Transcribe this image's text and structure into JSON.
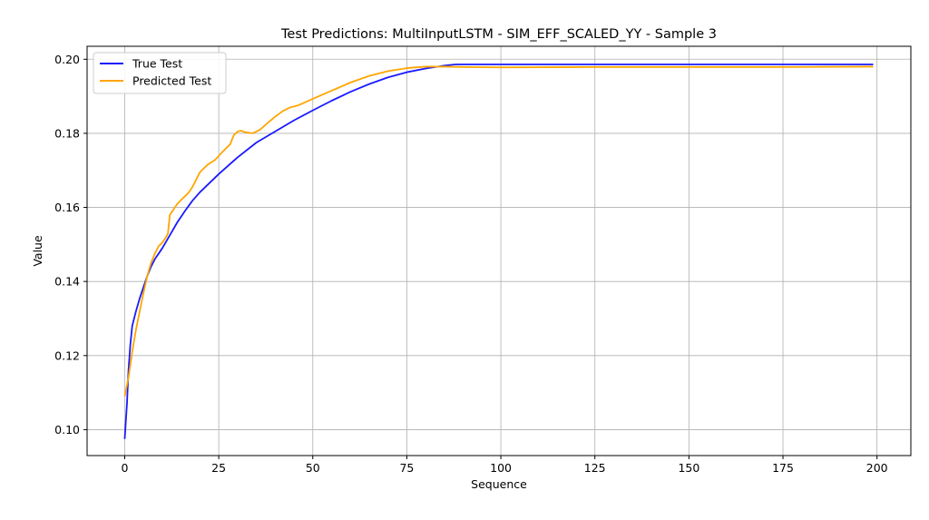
{
  "chart_data": {
    "type": "line",
    "title": "Test Predictions: MultiInputLSTM - SIM_EFF_SCALED_YY - Sample 3",
    "xlabel": "Sequence",
    "ylabel": "Value",
    "xlim": [
      -10,
      209
    ],
    "ylim": [
      0.093,
      0.2035
    ],
    "xticks": [
      0,
      25,
      50,
      75,
      100,
      125,
      150,
      175,
      200
    ],
    "yticks": [
      0.1,
      0.12,
      0.14,
      0.16,
      0.18,
      0.2
    ],
    "grid": true,
    "legend_position": "top-left",
    "series": [
      {
        "name": "True Test",
        "color": "#1a1aff",
        "points": [
          [
            0,
            0.0975
          ],
          [
            0.6,
            0.107
          ],
          [
            1,
            0.116
          ],
          [
            1.5,
            0.123
          ],
          [
            2,
            0.128
          ],
          [
            3,
            0.132
          ],
          [
            4,
            0.1355
          ],
          [
            5,
            0.1385
          ],
          [
            6,
            0.1415
          ],
          [
            7,
            0.144
          ],
          [
            8,
            0.146
          ],
          [
            9,
            0.1475
          ],
          [
            10,
            0.149
          ],
          [
            12,
            0.1525
          ],
          [
            14,
            0.156
          ],
          [
            16,
            0.159
          ],
          [
            18,
            0.1618
          ],
          [
            20,
            0.1641
          ],
          [
            25,
            0.169
          ],
          [
            30,
            0.1735
          ],
          [
            35,
            0.1775
          ],
          [
            40,
            0.1805
          ],
          [
            45,
            0.1835
          ],
          [
            50,
            0.1862
          ],
          [
            55,
            0.1888
          ],
          [
            60,
            0.1912
          ],
          [
            65,
            0.1933
          ],
          [
            70,
            0.1951
          ],
          [
            75,
            0.1965
          ],
          [
            80,
            0.1975
          ],
          [
            85,
            0.1983
          ],
          [
            88,
            0.1986
          ],
          [
            100,
            0.1986
          ],
          [
            125,
            0.1986
          ],
          [
            150,
            0.1986
          ],
          [
            175,
            0.1986
          ],
          [
            199,
            0.1986
          ]
        ]
      },
      {
        "name": "Predicted Test",
        "color": "#ffa500",
        "points": [
          [
            0,
            0.109
          ],
          [
            1,
            0.114
          ],
          [
            2,
            0.121
          ],
          [
            3,
            0.127
          ],
          [
            4,
            0.132
          ],
          [
            5,
            0.137
          ],
          [
            6,
            0.1415
          ],
          [
            7,
            0.145
          ],
          [
            8,
            0.1475
          ],
          [
            9,
            0.1495
          ],
          [
            10,
            0.1505
          ],
          [
            11,
            0.152
          ],
          [
            11.5,
            0.153
          ],
          [
            12,
            0.158
          ],
          [
            13,
            0.1595
          ],
          [
            14,
            0.161
          ],
          [
            15,
            0.162
          ],
          [
            16,
            0.163
          ],
          [
            17,
            0.164
          ],
          [
            18,
            0.1655
          ],
          [
            19,
            0.1675
          ],
          [
            20,
            0.1695
          ],
          [
            22,
            0.1715
          ],
          [
            24,
            0.1728
          ],
          [
            26,
            0.175
          ],
          [
            28,
            0.177
          ],
          [
            29,
            0.1795
          ],
          [
            30,
            0.1805
          ],
          [
            31,
            0.1807
          ],
          [
            32,
            0.1803
          ],
          [
            34,
            0.18
          ],
          [
            36,
            0.181
          ],
          [
            38,
            0.1828
          ],
          [
            40,
            0.1845
          ],
          [
            42,
            0.186
          ],
          [
            44,
            0.187
          ],
          [
            46,
            0.1875
          ],
          [
            50,
            0.1893
          ],
          [
            55,
            0.1915
          ],
          [
            60,
            0.1937
          ],
          [
            65,
            0.1955
          ],
          [
            70,
            0.1968
          ],
          [
            75,
            0.1976
          ],
          [
            80,
            0.198
          ],
          [
            85,
            0.198
          ],
          [
            90,
            0.1979
          ],
          [
            100,
            0.1978
          ],
          [
            125,
            0.1979
          ],
          [
            150,
            0.1979
          ],
          [
            175,
            0.1979
          ],
          [
            199,
            0.198
          ]
        ]
      }
    ]
  }
}
